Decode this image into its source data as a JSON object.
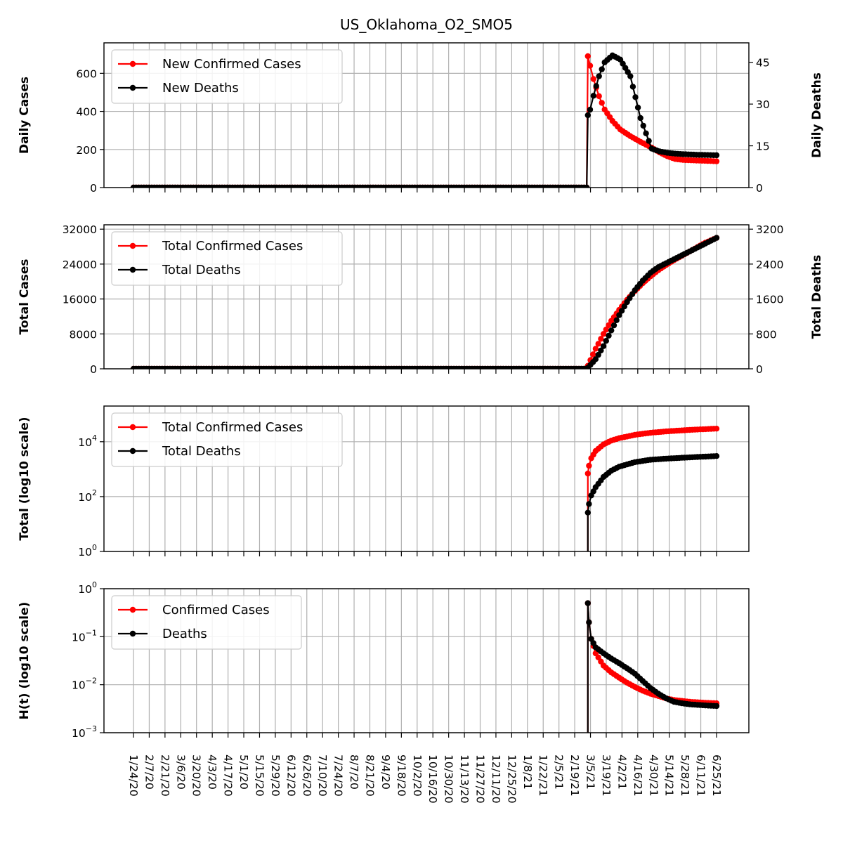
{
  "title": "US_Oklahoma_O2_SMO5",
  "colors": {
    "cases": "#ff0000",
    "deaths": "#000000",
    "grid": "#b0b0b0"
  },
  "x_tick_labels": [
    "1/24/20",
    "2/7/20",
    "2/21/20",
    "3/6/20",
    "3/20/20",
    "4/3/20",
    "4/17/20",
    "5/1/20",
    "5/15/20",
    "5/29/20",
    "6/12/20",
    "6/26/20",
    "7/10/20",
    "7/24/20",
    "8/7/20",
    "8/21/20",
    "9/4/20",
    "9/18/20",
    "10/2/20",
    "10/16/20",
    "10/30/20",
    "11/13/20",
    "11/27/20",
    "12/11/20",
    "12/25/20",
    "1/8/21",
    "1/22/21",
    "2/5/21",
    "2/19/21",
    "3/5/21",
    "3/19/21",
    "4/2/21",
    "4/16/21",
    "4/30/21",
    "5/14/21",
    "5/28/21",
    "6/11/21",
    "6/25/21"
  ],
  "chart_data": [
    {
      "type": "line",
      "panel": "daily",
      "x": [
        "1/24/20",
        "3/4/21",
        "3/5/21",
        "3/7/21",
        "3/10/21",
        "3/15/21",
        "3/20/21",
        "3/27/21",
        "4/3/21",
        "4/12/21",
        "4/21/21",
        "5/1/21",
        "5/8/21",
        "5/15/21",
        "5/22/21",
        "5/29/21",
        "6/10/21",
        "6/20/21",
        "6/28/21"
      ],
      "ylabel": "Daily Cases",
      "y2label": "Daily Deaths",
      "ylim": [
        0,
        760
      ],
      "y2lim": [
        0,
        52
      ],
      "yticks": [
        "0",
        "200",
        "400",
        "600"
      ],
      "y2ticks": [
        "0",
        "15",
        "30",
        "45"
      ],
      "legend": "upper-left",
      "grid": true,
      "series": [
        {
          "name": "New Confirmed Cases",
          "axis": "left",
          "values": [
            0,
            0,
            690,
            640,
            570,
            480,
            410,
            350,
            305,
            270,
            240,
            210,
            185,
            165,
            150,
            145,
            142,
            140,
            138
          ]
        },
        {
          "name": "New Deaths",
          "axis": "right",
          "values": [
            0,
            0,
            26,
            28,
            33,
            40,
            45,
            47.5,
            46,
            40,
            25,
            14,
            13,
            12.5,
            12.2,
            12,
            11.8,
            11.7,
            11.6
          ]
        }
      ]
    },
    {
      "type": "line",
      "panel": "total",
      "x": [
        "1/24/20",
        "3/4/21",
        "3/5/21",
        "3/12/21",
        "3/19/21",
        "3/26/21",
        "4/2/21",
        "4/9/21",
        "4/16/21",
        "4/23/21",
        "4/30/21",
        "5/7/21",
        "5/14/21",
        "5/21/21",
        "5/28/21",
        "6/4/21",
        "6/11/21",
        "6/18/21",
        "6/28/21"
      ],
      "ylabel": "Total Cases",
      "y2label": "Total Deaths",
      "ylim": [
        0,
        33000
      ],
      "y2lim": [
        0,
        3300
      ],
      "yticks": [
        "0",
        "8000",
        "16000",
        "24000",
        "32000"
      ],
      "y2ticks": [
        "0",
        "800",
        "1600",
        "2400",
        "3200"
      ],
      "legend": "upper-left",
      "grid": true,
      "series": [
        {
          "name": "Total Confirmed Cases",
          "axis": "left",
          "values": [
            0,
            0,
            690,
            4600,
            8000,
            11000,
            13500,
            15800,
            17800,
            19600,
            21200,
            22600,
            23800,
            24900,
            25900,
            26900,
            27900,
            28900,
            30000
          ]
        },
        {
          "name": "Total Deaths",
          "axis": "right",
          "values": [
            0,
            0,
            26,
            220,
            520,
            880,
            1230,
            1530,
            1800,
            2020,
            2200,
            2330,
            2420,
            2510,
            2600,
            2690,
            2780,
            2870,
            3000
          ]
        }
      ]
    },
    {
      "type": "line",
      "panel": "log_total",
      "x": [
        "3/5/21",
        "3/6/21",
        "3/8/21",
        "3/12/21",
        "3/19/21",
        "3/26/21",
        "4/2/21",
        "4/16/21",
        "4/30/21",
        "5/14/21",
        "5/28/21",
        "6/11/21",
        "6/28/21"
      ],
      "ylabel": "Total (log10 scale)",
      "yscale": "log",
      "ylim": [
        1,
        200000
      ],
      "yticks": [
        "10^0",
        "10^2",
        "10^4"
      ],
      "legend": "upper-left",
      "grid": true,
      "series": [
        {
          "name": "Total Confirmed Cases",
          "values": [
            690,
            1330,
            2500,
            4600,
            8000,
            11000,
            13500,
            17800,
            21200,
            23800,
            25900,
            27900,
            30000
          ]
        },
        {
          "name": "Total Deaths",
          "values": [
            26,
            54,
            110,
            220,
            520,
            880,
            1230,
            1800,
            2200,
            2420,
            2600,
            2780,
            3000
          ]
        }
      ]
    },
    {
      "type": "line",
      "panel": "h_t",
      "x": [
        "3/5/21",
        "3/6/21",
        "3/8/21",
        "3/12/21",
        "3/19/21",
        "3/26/21",
        "4/2/21",
        "4/9/21",
        "4/16/21",
        "4/23/21",
        "4/30/21",
        "5/7/21",
        "5/14/21",
        "5/21/21",
        "5/28/21",
        "6/4/21",
        "6/11/21",
        "6/18/21",
        "6/28/21"
      ],
      "ylabel": "H(t) (log10 scale)",
      "yscale": "log",
      "ylim": [
        0.001,
        1
      ],
      "yticks": [
        "10^-3",
        "10^-2",
        "10^-1",
        "10^0"
      ],
      "legend": "upper-left",
      "grid": true,
      "series": [
        {
          "name": "Confirmed Cases",
          "values": [
            0.5,
            0.2,
            0.09,
            0.045,
            0.025,
            0.018,
            0.014,
            0.011,
            0.009,
            0.0075,
            0.0065,
            0.0058,
            0.0052,
            0.0048,
            0.0046,
            0.0044,
            0.0043,
            0.0042,
            0.0041
          ]
        },
        {
          "name": "Deaths",
          "values": [
            0.5,
            0.2,
            0.09,
            0.06,
            0.045,
            0.035,
            0.028,
            0.022,
            0.017,
            0.012,
            0.0085,
            0.0065,
            0.0052,
            0.0044,
            0.0041,
            0.0039,
            0.0038,
            0.0037,
            0.0036
          ]
        }
      ]
    }
  ]
}
